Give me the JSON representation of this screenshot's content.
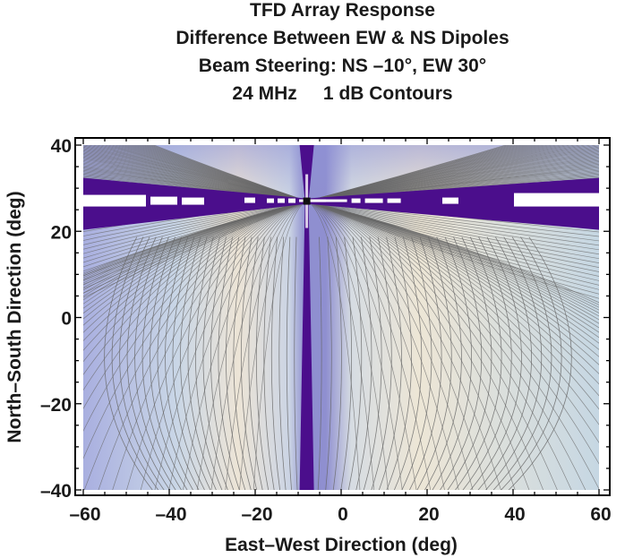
{
  "chart_data": {
    "type": "heatmap",
    "subtype": "contour",
    "title_lines": [
      "TFD Array Response",
      "Difference Between EW & NS Dipoles",
      "Beam Steering: NS –10°, EW 30°",
      "24 MHz     1 dB Contours"
    ],
    "xlabel": "East–West Direction (deg)",
    "ylabel": "North–South Direction (deg)",
    "xlim": [
      -60,
      60
    ],
    "ylim": [
      -40,
      40
    ],
    "x_ticks": [
      -60,
      -40,
      -20,
      0,
      20,
      40,
      60
    ],
    "x_tick_labels": [
      "–60",
      "–40",
      "–20",
      "0",
      "20",
      "40",
      "60"
    ],
    "y_ticks": [
      -40,
      -20,
      0,
      20,
      40
    ],
    "y_tick_labels": [
      "–40",
      "–20",
      "0",
      "20",
      "40"
    ],
    "contour_interval_db": 1,
    "null_crossing": {
      "x": -8,
      "y": 27
    },
    "null_vertical_band_x": -8,
    "null_horizontal_band_y": 27,
    "colors": {
      "null": "#4b0e8c",
      "low": "#a8aee0",
      "mid": "#cfdde4",
      "high": "#ede6d6",
      "contour_line": "#666666",
      "frame": "#000000"
    }
  }
}
